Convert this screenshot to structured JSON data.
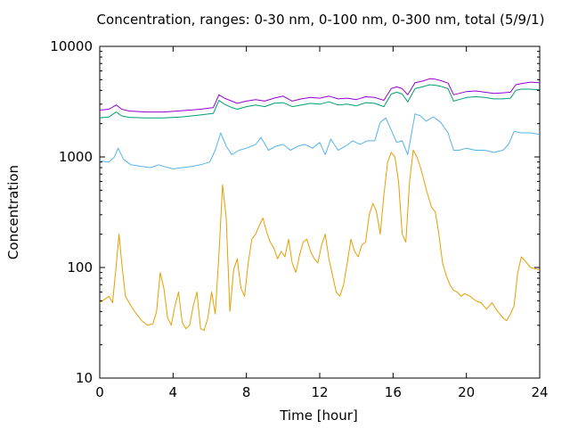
{
  "chart_data": {
    "type": "line",
    "title": "Concentration, ranges: 0-30 nm, 0-100 nm, 0-300 nm, total (5/9/1)",
    "xlabel": "Time [hour]",
    "ylabel": "Concentration",
    "xlim": [
      0,
      24
    ],
    "ylim": [
      10,
      10000
    ],
    "yscale": "log",
    "grid": false,
    "legend": "none",
    "xticks": [
      0,
      4,
      8,
      12,
      16,
      20,
      24
    ],
    "xtick_labels": [
      "0",
      "4",
      "8",
      "12",
      "16",
      "20",
      "24"
    ],
    "yticks": [
      10,
      100,
      1000,
      10000
    ],
    "ytick_labels": [
      "10",
      "100",
      "1000",
      "10000"
    ],
    "series": [
      {
        "color": "#9400d3",
        "x": [
          0,
          0.5,
          0.9,
          1.2,
          1.6,
          2.5,
          3.5,
          4.5,
          5.5,
          6.2,
          6.5,
          6.8,
          7.2,
          7.5,
          8,
          8.5,
          9,
          9.5,
          10,
          10.5,
          11,
          11.5,
          12,
          12.5,
          13,
          13.5,
          14,
          14.5,
          15,
          15.5,
          15.9,
          16.2,
          16.5,
          16.8,
          17.2,
          17.6,
          18,
          18.3,
          18.6,
          19,
          19.3,
          19.6,
          20,
          20.5,
          21,
          21.5,
          22,
          22.4,
          22.7,
          23,
          23.5,
          24
        ],
        "y": [
          2650,
          2700,
          2950,
          2700,
          2600,
          2550,
          2550,
          2620,
          2700,
          2800,
          3650,
          3400,
          3200,
          3050,
          3200,
          3300,
          3200,
          3400,
          3550,
          3200,
          3350,
          3450,
          3400,
          3550,
          3350,
          3400,
          3300,
          3500,
          3450,
          3250,
          4150,
          4300,
          4150,
          3650,
          4700,
          4850,
          5100,
          5050,
          4900,
          4650,
          3650,
          3750,
          3900,
          3950,
          3850,
          3750,
          3800,
          3850,
          4500,
          4600,
          4750,
          4700
        ]
      },
      {
        "color": "#009e73",
        "x": [
          0,
          0.5,
          0.9,
          1.2,
          1.6,
          2.5,
          3.5,
          4.5,
          5.5,
          6.2,
          6.5,
          6.8,
          7.2,
          7.5,
          8,
          8.5,
          9,
          9.5,
          10,
          10.5,
          11,
          11.5,
          12,
          12.5,
          13,
          13.5,
          14,
          14.5,
          15,
          15.5,
          15.9,
          16.2,
          16.5,
          16.8,
          17.2,
          17.6,
          18,
          18.3,
          18.6,
          19,
          19.3,
          19.6,
          20,
          20.5,
          21,
          21.5,
          22,
          22.4,
          22.7,
          23,
          23.5,
          24
        ],
        "y": [
          2250,
          2300,
          2550,
          2350,
          2280,
          2250,
          2250,
          2300,
          2400,
          2480,
          3250,
          3000,
          2800,
          2700,
          2850,
          2950,
          2850,
          3050,
          3100,
          2850,
          2950,
          3050,
          3000,
          3150,
          2950,
          3000,
          2900,
          3100,
          3050,
          2850,
          3700,
          3850,
          3700,
          3150,
          4150,
          4300,
          4500,
          4450,
          4350,
          4150,
          3200,
          3300,
          3450,
          3500,
          3450,
          3350,
          3350,
          3400,
          4000,
          4100,
          4100,
          4050
        ]
      },
      {
        "color": "#56b4e9",
        "x": [
          0,
          0.5,
          0.8,
          1.0,
          1.3,
          1.7,
          2.3,
          2.8,
          3.2,
          3.5,
          4,
          4.5,
          5,
          5.5,
          6,
          6.3,
          6.6,
          6.9,
          7.2,
          7.6,
          8,
          8.5,
          8.8,
          9.2,
          9.6,
          10,
          10.4,
          10.8,
          11.2,
          11.6,
          12,
          12.3,
          12.6,
          13,
          13.4,
          13.8,
          14.2,
          14.6,
          15,
          15.3,
          15.6,
          15.9,
          16.2,
          16.5,
          16.8,
          17.2,
          17.5,
          17.8,
          18.2,
          18.6,
          19,
          19.3,
          19.6,
          20,
          20.5,
          21,
          21.5,
          22,
          22.3,
          22.6,
          23,
          23.5,
          24
        ],
        "y": [
          920,
          900,
          1000,
          1200,
          950,
          850,
          820,
          800,
          850,
          820,
          780,
          800,
          820,
          850,
          900,
          1150,
          1650,
          1250,
          1050,
          1150,
          1200,
          1300,
          1500,
          1150,
          1250,
          1300,
          1150,
          1250,
          1300,
          1200,
          1350,
          1050,
          1450,
          1150,
          1250,
          1400,
          1300,
          1400,
          1400,
          2050,
          2250,
          1750,
          1350,
          1400,
          1050,
          2450,
          2350,
          2100,
          2300,
          2050,
          1650,
          1150,
          1150,
          1200,
          1150,
          1150,
          1100,
          1150,
          1300,
          1700,
          1650,
          1650,
          1600
        ]
      },
      {
        "color": "#e69f00",
        "x": [
          0,
          0.3,
          0.5,
          0.7,
          0.9,
          1.05,
          1.2,
          1.4,
          1.7,
          2.0,
          2.3,
          2.6,
          2.9,
          3.1,
          3.3,
          3.5,
          3.7,
          3.9,
          4.1,
          4.3,
          4.5,
          4.7,
          4.9,
          5.1,
          5.3,
          5.5,
          5.7,
          5.9,
          6.1,
          6.3,
          6.5,
          6.7,
          6.9,
          7.1,
          7.3,
          7.5,
          7.7,
          7.9,
          8.1,
          8.3,
          8.5,
          8.7,
          8.9,
          9.1,
          9.3,
          9.5,
          9.7,
          9.9,
          10.1,
          10.3,
          10.5,
          10.7,
          10.9,
          11.1,
          11.3,
          11.5,
          11.7,
          11.9,
          12.1,
          12.3,
          12.5,
          12.7,
          12.9,
          13.1,
          13.3,
          13.5,
          13.7,
          13.9,
          14.1,
          14.3,
          14.5,
          14.7,
          14.9,
          15.1,
          15.3,
          15.5,
          15.7,
          15.9,
          16.1,
          16.3,
          16.5,
          16.7,
          16.9,
          17.1,
          17.3,
          17.5,
          17.7,
          17.9,
          18.1,
          18.3,
          18.5,
          18.7,
          18.9,
          19.1,
          19.3,
          19.5,
          19.7,
          19.9,
          20.2,
          20.5,
          20.8,
          21.1,
          21.4,
          21.7,
          22.0,
          22.2,
          22.4,
          22.6,
          22.8,
          23.0,
          23.2,
          23.5,
          24
        ],
        "y": [
          48,
          52,
          55,
          48,
          105,
          200,
          110,
          55,
          45,
          38,
          33,
          30,
          31,
          40,
          90,
          65,
          35,
          30,
          45,
          60,
          32,
          28,
          30,
          45,
          60,
          28,
          27,
          35,
          60,
          38,
          130,
          560,
          280,
          40,
          95,
          120,
          65,
          55,
          110,
          180,
          200,
          240,
          280,
          210,
          170,
          150,
          120,
          140,
          125,
          180,
          110,
          90,
          130,
          170,
          180,
          140,
          120,
          110,
          160,
          200,
          120,
          85,
          60,
          55,
          70,
          110,
          180,
          140,
          125,
          160,
          170,
          300,
          380,
          320,
          200,
          450,
          900,
          1100,
          1000,
          600,
          200,
          170,
          600,
          1150,
          1000,
          800,
          600,
          450,
          350,
          320,
          200,
          110,
          85,
          70,
          62,
          60,
          55,
          58,
          55,
          50,
          48,
          42,
          48,
          40,
          35,
          33,
          38,
          45,
          90,
          125,
          115,
          100,
          95
        ]
      }
    ]
  }
}
